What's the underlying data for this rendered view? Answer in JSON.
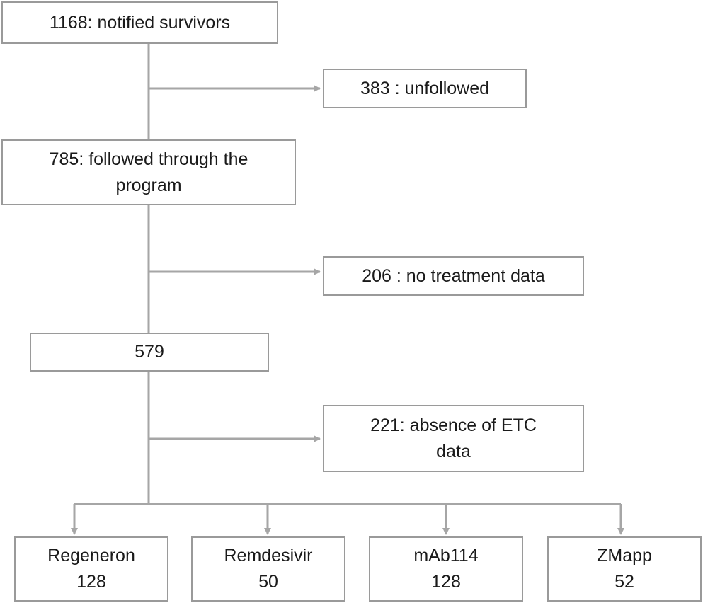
{
  "nodes": [
    {
      "lines": [
        "1168: notified survivors"
      ]
    },
    {
      "lines": [
        "383 : unfollowed"
      ]
    },
    {
      "lines": [
        "785: followed through the",
        "program"
      ]
    },
    {
      "lines": [
        "206 : no treatment data"
      ]
    },
    {
      "lines": [
        "579"
      ]
    },
    {
      "lines": [
        "221: absence of ETC",
        "data"
      ]
    },
    {
      "lines": [
        "Regeneron",
        "128"
      ]
    },
    {
      "lines": [
        "Remdesivir",
        "50"
      ]
    },
    {
      "lines": [
        "mAb114",
        "128"
      ]
    },
    {
      "lines": [
        "ZMapp",
        "52"
      ]
    }
  ]
}
